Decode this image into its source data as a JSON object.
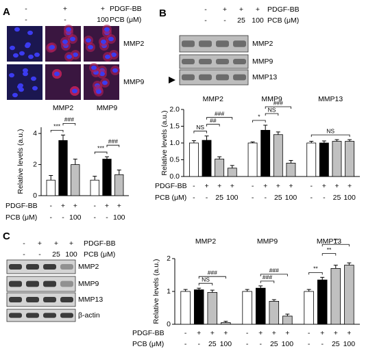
{
  "panels": [
    {
      "label": "A",
      "header": [
        {
          "name": "PDGF-BB",
          "labels": [
            "-",
            "+",
            "+"
          ]
        },
        {
          "name": "PCB (μM)",
          "labels": [
            "-",
            "-",
            "100"
          ]
        }
      ],
      "image_labels": [
        "MMP2",
        "MMP9"
      ]
    },
    {
      "label": "B",
      "header": [
        {
          "name": "PDGF-BB",
          "labels": [
            "-",
            "+",
            "+",
            "+"
          ]
        },
        {
          "name": "PCB (μM)",
          "labels": [
            "-",
            "-",
            "25",
            "100"
          ]
        }
      ],
      "image_labels": [
        "MMP2",
        "MMP9",
        "MMP13"
      ]
    },
    {
      "label": "C",
      "header": [
        {
          "name": "PDGF-BB",
          "labels": [
            "-",
            "+",
            "+",
            "+"
          ]
        },
        {
          "name": "PCB (μM)",
          "labels": [
            "-",
            "-",
            "25",
            "100"
          ]
        }
      ],
      "image_labels": [
        "MMP2",
        "MMP9",
        "MMP13",
        "β-actin"
      ]
    }
  ],
  "chart_data": [
    {
      "type": "bar",
      "y_label": "Relative levels (a.u.)",
      "ylim": [
        0,
        4.4
      ],
      "yticks": [
        0,
        2,
        4
      ],
      "colors": [
        "#ffffff",
        "#000000",
        "#c0c0c0"
      ],
      "groups": [
        {
          "name": "MMP2",
          "values": [
            1,
            3.55,
            2.0
          ],
          "errors": [
            0.3,
            0.35,
            0.35
          ],
          "annotations": [
            {
              "from": 0,
              "to": 1,
              "text": "***"
            },
            {
              "from": 1,
              "to": 2,
              "text": "###"
            }
          ]
        },
        {
          "name": "MMP9",
          "values": [
            1,
            2.35,
            1.35
          ],
          "errors": [
            0.25,
            0.15,
            0.3
          ],
          "annotations": [
            {
              "from": 0,
              "to": 1,
              "text": "***"
            },
            {
              "from": 1,
              "to": 2,
              "text": "###"
            }
          ]
        }
      ],
      "rows": [
        {
          "name": "PDGF-BB",
          "labels": [
            "-",
            "+",
            "+"
          ]
        },
        {
          "name": "PCB (μM)",
          "labels": [
            "-",
            "-",
            "100"
          ]
        }
      ]
    },
    {
      "type": "bar",
      "y_label": "Relative levels (a.u.)",
      "ylim": [
        0,
        2
      ],
      "yticks": [
        {
          "value": 0,
          "label": "0.0"
        },
        {
          "value": 0.5,
          "label": "0.5"
        },
        {
          "value": 1,
          "label": "1.0"
        },
        {
          "value": 1.5,
          "label": "1.5"
        },
        {
          "value": 2,
          "label": "2.0"
        }
      ],
      "colors": [
        "#ffffff",
        "#000000",
        "#c0c0c0",
        "#c0c0c0"
      ],
      "groups": [
        {
          "name": "MMP2",
          "values": [
            1.0,
            1.08,
            0.52,
            0.25
          ],
          "errors": [
            0.07,
            0.13,
            0.07,
            0.08
          ],
          "annotations": [
            {
              "from": 0,
              "to": 1,
              "text": "NS"
            },
            {
              "from": 1,
              "to": 2,
              "text": "##"
            },
            {
              "from": 1,
              "to": 3,
              "text": "###"
            }
          ]
        },
        {
          "name": "MMP9",
          "values": [
            1.0,
            1.38,
            1.25,
            0.4
          ],
          "errors": [
            0.03,
            0.15,
            0.08,
            0.08
          ],
          "annotations": [
            {
              "from": 0,
              "to": 1,
              "text": "*"
            },
            {
              "from": 1,
              "to": 2,
              "text": "NS"
            },
            {
              "from": 1,
              "to": 3,
              "text": "###"
            }
          ]
        },
        {
          "name": "MMP13",
          "values": [
            1.0,
            1.0,
            1.05,
            1.05
          ],
          "errors": [
            0.05,
            0.06,
            0.05,
            0.05
          ],
          "annotations": [
            {
              "from": 0,
              "to": 3,
              "text": "NS"
            }
          ]
        }
      ],
      "rows": [
        {
          "name": "PDGF-BB",
          "labels": [
            "-",
            "+",
            "+",
            "+"
          ]
        },
        {
          "name": "PCB (μM)",
          "labels": [
            "-",
            "-",
            "25",
            "100"
          ]
        }
      ]
    },
    {
      "type": "bar",
      "y_label": "Relative levels (a.u.)",
      "ylim": [
        0,
        2
      ],
      "yticks": [
        0,
        1,
        2
      ],
      "colors": [
        "#ffffff",
        "#000000",
        "#c0c0c0",
        "#c0c0c0"
      ],
      "groups": [
        {
          "name": "MMP2",
          "values": [
            1.0,
            1.05,
            0.97,
            0.05
          ],
          "errors": [
            0.06,
            0.05,
            0.07,
            0.04
          ],
          "annotations": [
            {
              "from": 1,
              "to": 2,
              "text": "NS"
            },
            {
              "from": 1,
              "to": 3,
              "text": "###"
            }
          ]
        },
        {
          "name": "MMP9",
          "values": [
            1.0,
            1.1,
            0.7,
            0.25
          ],
          "errors": [
            0.06,
            0.07,
            0.05,
            0.06
          ],
          "annotations": [
            {
              "from": 1,
              "to": 2,
              "text": "###"
            },
            {
              "from": 1,
              "to": 3,
              "text": "###"
            }
          ]
        },
        {
          "name": "MMP13",
          "values": [
            1.0,
            1.35,
            1.7,
            1.8
          ],
          "errors": [
            0.06,
            0.08,
            0.1,
            0.07
          ],
          "annotations": [
            {
              "from": 0,
              "to": 1,
              "text": "**"
            },
            {
              "from": 1,
              "to": 2,
              "text": "**"
            },
            {
              "from": 1,
              "to": 3,
              "text": "**"
            }
          ]
        }
      ],
      "rows": [
        {
          "name": "PDGF-BB",
          "labels": [
            "-",
            "+",
            "+",
            "+"
          ]
        },
        {
          "name": "PCB (μM)",
          "labels": [
            "-",
            "-",
            "25",
            "100"
          ]
        }
      ]
    }
  ]
}
